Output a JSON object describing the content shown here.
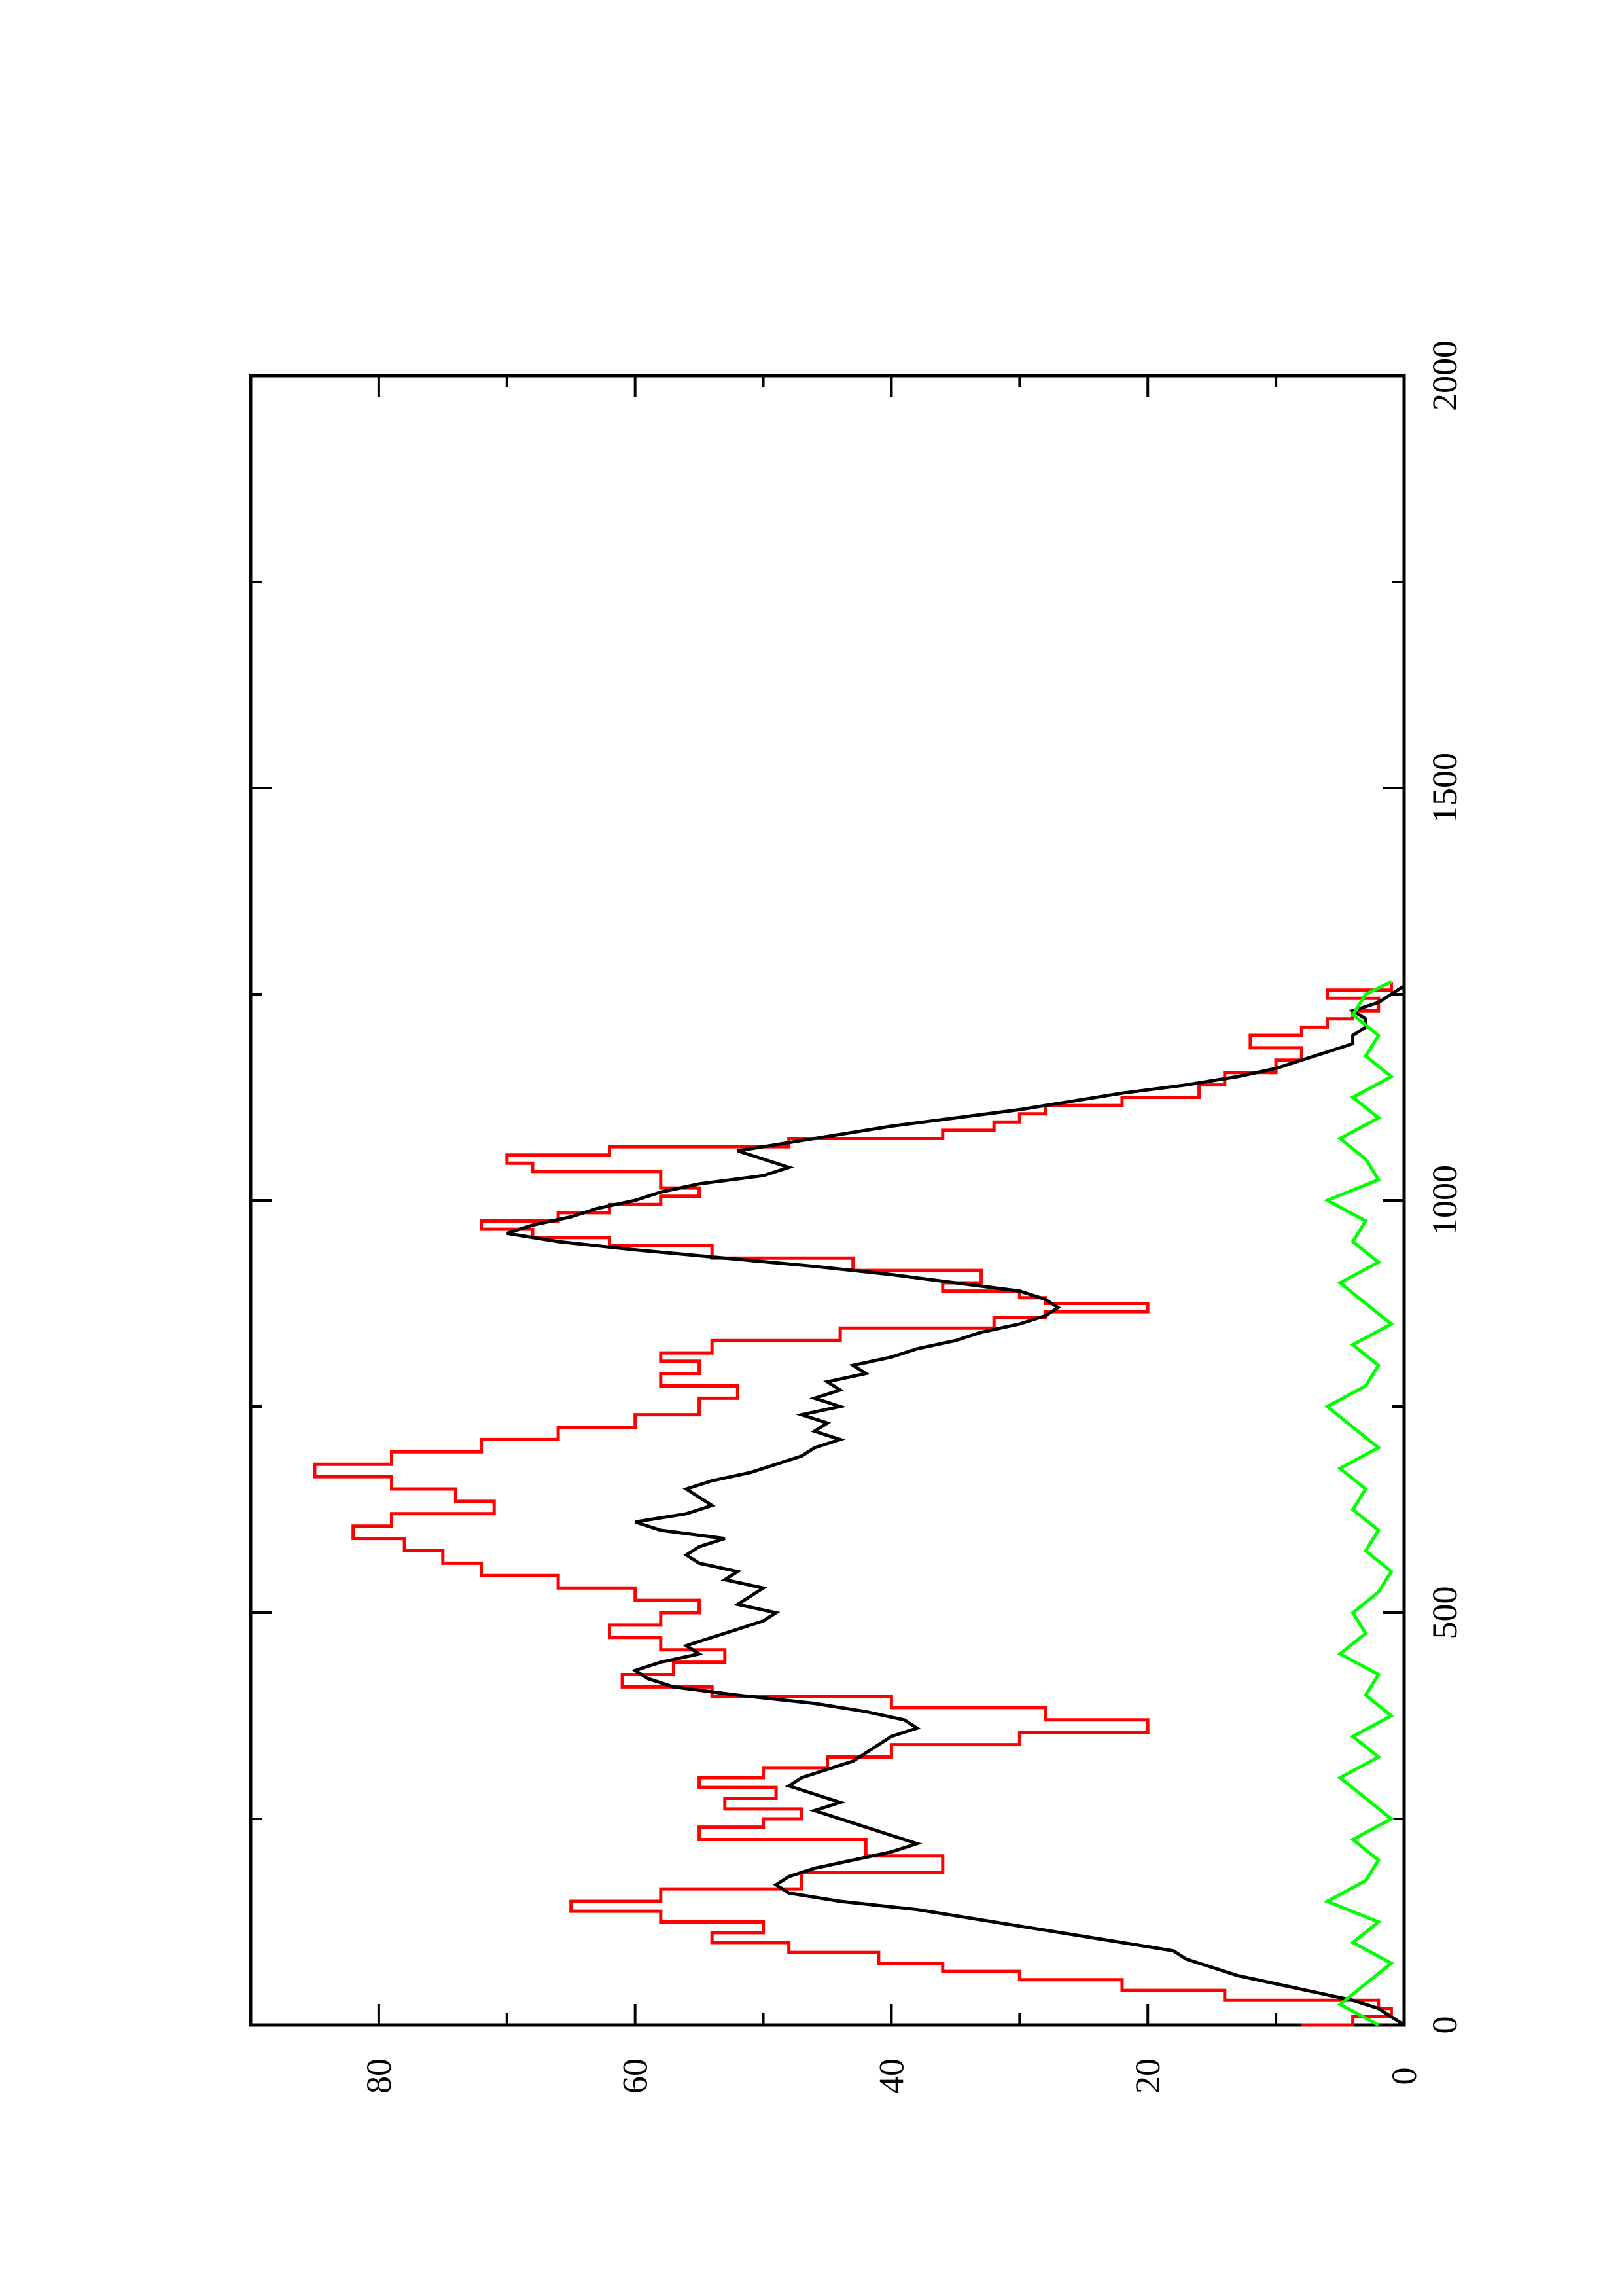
{
  "chart_data": {
    "type": "line",
    "title": "",
    "xlabel": "",
    "ylabel": "",
    "xlim": [
      0,
      2000
    ],
    "ylim": [
      0,
      90
    ],
    "orientation": "rotated-90-counterclockwise",
    "grid": false,
    "legend": "none",
    "x_ticks": [
      0,
      500,
      1000,
      1500,
      2000
    ],
    "x_minor_ticks": [
      250,
      750,
      1250,
      1750
    ],
    "y_ticks": [
      0,
      20,
      40,
      60,
      80
    ],
    "y_minor_ticks": [
      10,
      30,
      50,
      70
    ],
    "x_tick_labels": [
      "0",
      "500",
      "1000",
      "1500",
      "2000"
    ],
    "y_tick_labels": [
      "0",
      "20",
      "40",
      "60",
      "80"
    ],
    "series": [
      {
        "color": "#ff0000",
        "step": true,
        "x": [
          0,
          10,
          20,
          30,
          42,
          55,
          65,
          75,
          88,
          100,
          112,
          125,
          138,
          150,
          165,
          185,
          205,
          225,
          240,
          250,
          262,
          275,
          288,
          300,
          312,
          325,
          340,
          355,
          370,
          385,
          398,
          410,
          425,
          440,
          455,
          470,
          485,
          500,
          515,
          530,
          545,
          560,
          575,
          590,
          605,
          620,
          635,
          650,
          665,
          680,
          695,
          710,
          725,
          740,
          760,
          775,
          790,
          805,
          815,
          830,
          845,
          858,
          865,
          875,
          882,
          890,
          900,
          915,
          930,
          945,
          955,
          965,
          975,
          985,
          995,
          1005,
          1015,
          1025,
          1035,
          1045,
          1055,
          1065,
          1075,
          1085,
          1095,
          1105,
          1115,
          1125,
          1140,
          1155,
          1170,
          1185,
          1200,
          1210,
          1220,
          1230,
          1245,
          1255,
          1265
        ],
        "y": [
          8,
          4,
          1,
          2,
          14,
          22,
          30,
          36,
          41,
          48,
          54,
          50,
          58,
          65,
          58,
          47,
          36,
          42,
          55,
          50,
          47,
          53,
          49,
          55,
          50,
          45,
          40,
          30,
          20,
          28,
          40,
          54,
          61,
          57,
          53,
          58,
          62,
          58,
          55,
          60,
          66,
          72,
          75,
          78,
          82,
          79,
          71,
          74,
          79,
          85,
          79,
          72,
          66,
          60,
          55,
          52,
          58,
          55,
          58,
          54,
          44,
          32,
          28,
          20,
          28,
          30,
          36,
          33,
          43,
          54,
          62,
          68,
          72,
          66,
          62,
          58,
          55,
          58,
          58,
          68,
          70,
          62,
          48,
          36,
          32,
          30,
          28,
          22,
          16,
          14,
          10,
          8,
          12,
          8,
          6,
          4,
          2,
          6,
          1
        ]
      },
      {
        "color": "#000000",
        "step": false,
        "x": [
          0,
          10,
          20,
          30,
          40,
          50,
          60,
          70,
          80,
          90,
          100,
          110,
          120,
          130,
          140,
          150,
          160,
          170,
          180,
          190,
          200,
          210,
          220,
          230,
          240,
          250,
          260,
          270,
          280,
          290,
          300,
          310,
          320,
          330,
          340,
          350,
          360,
          370,
          380,
          390,
          400,
          410,
          420,
          430,
          440,
          450,
          460,
          470,
          480,
          490,
          500,
          510,
          520,
          530,
          540,
          550,
          560,
          570,
          580,
          590,
          600,
          610,
          620,
          630,
          640,
          650,
          660,
          670,
          680,
          690,
          700,
          710,
          720,
          730,
          740,
          750,
          760,
          770,
          780,
          790,
          800,
          810,
          820,
          830,
          840,
          850,
          860,
          870,
          880,
          890,
          900,
          910,
          920,
          930,
          940,
          950,
          960,
          970,
          980,
          990,
          1000,
          1010,
          1020,
          1030,
          1040,
          1050,
          1060,
          1070,
          1080,
          1090,
          1100,
          1110,
          1120,
          1130,
          1140,
          1150,
          1160,
          1170,
          1180,
          1190,
          1200,
          1210,
          1220,
          1230,
          1240,
          1250,
          1260
        ],
        "y": [
          0,
          1,
          2,
          4,
          7,
          10,
          13,
          15,
          17,
          18,
          22,
          26,
          30,
          34,
          38,
          44,
          48,
          49,
          48,
          46,
          43,
          40,
          38,
          40,
          42,
          44,
          46,
          44,
          46,
          48,
          47,
          45,
          43,
          42,
          41,
          40,
          38,
          39,
          42,
          46,
          52,
          57,
          59,
          60,
          58,
          55,
          56,
          54,
          52,
          50,
          49,
          52,
          51,
          50,
          53,
          52,
          55,
          56,
          55,
          53,
          58,
          60,
          56,
          54,
          55,
          56,
          54,
          51,
          49,
          47,
          46,
          44,
          46,
          45,
          47,
          44,
          46,
          44,
          45,
          42,
          43,
          40,
          38,
          35,
          33,
          30,
          28,
          27,
          28,
          30,
          35,
          40,
          46,
          53,
          60,
          66,
          70,
          68,
          65,
          63,
          60,
          58,
          55,
          50,
          48,
          50,
          52,
          48,
          44,
          40,
          35,
          30,
          26,
          22,
          17,
          13,
          10,
          8,
          6,
          4,
          4,
          3,
          3,
          4,
          2,
          1,
          0
        ]
      },
      {
        "color": "#00ff00",
        "step": false,
        "x": [
          0,
          25,
          50,
          75,
          100,
          125,
          150,
          175,
          200,
          225,
          250,
          275,
          300,
          325,
          350,
          375,
          400,
          425,
          450,
          475,
          500,
          525,
          550,
          575,
          600,
          625,
          650,
          675,
          700,
          725,
          750,
          775,
          800,
          825,
          850,
          875,
          900,
          925,
          950,
          975,
          1000,
          1025,
          1050,
          1075,
          1100,
          1125,
          1150,
          1175,
          1200,
          1225,
          1250,
          1265
        ],
        "y": [
          2,
          5,
          3,
          1,
          4,
          2,
          6,
          3,
          2,
          4,
          1,
          3,
          5,
          2,
          4,
          1,
          3,
          2,
          5,
          3,
          4,
          2,
          1,
          3,
          2,
          4,
          3,
          5,
          2,
          4,
          6,
          3,
          2,
          4,
          1,
          3,
          5,
          2,
          4,
          3,
          6,
          2,
          3,
          5,
          2,
          4,
          1,
          3,
          2,
          4,
          3,
          1
        ]
      }
    ]
  }
}
